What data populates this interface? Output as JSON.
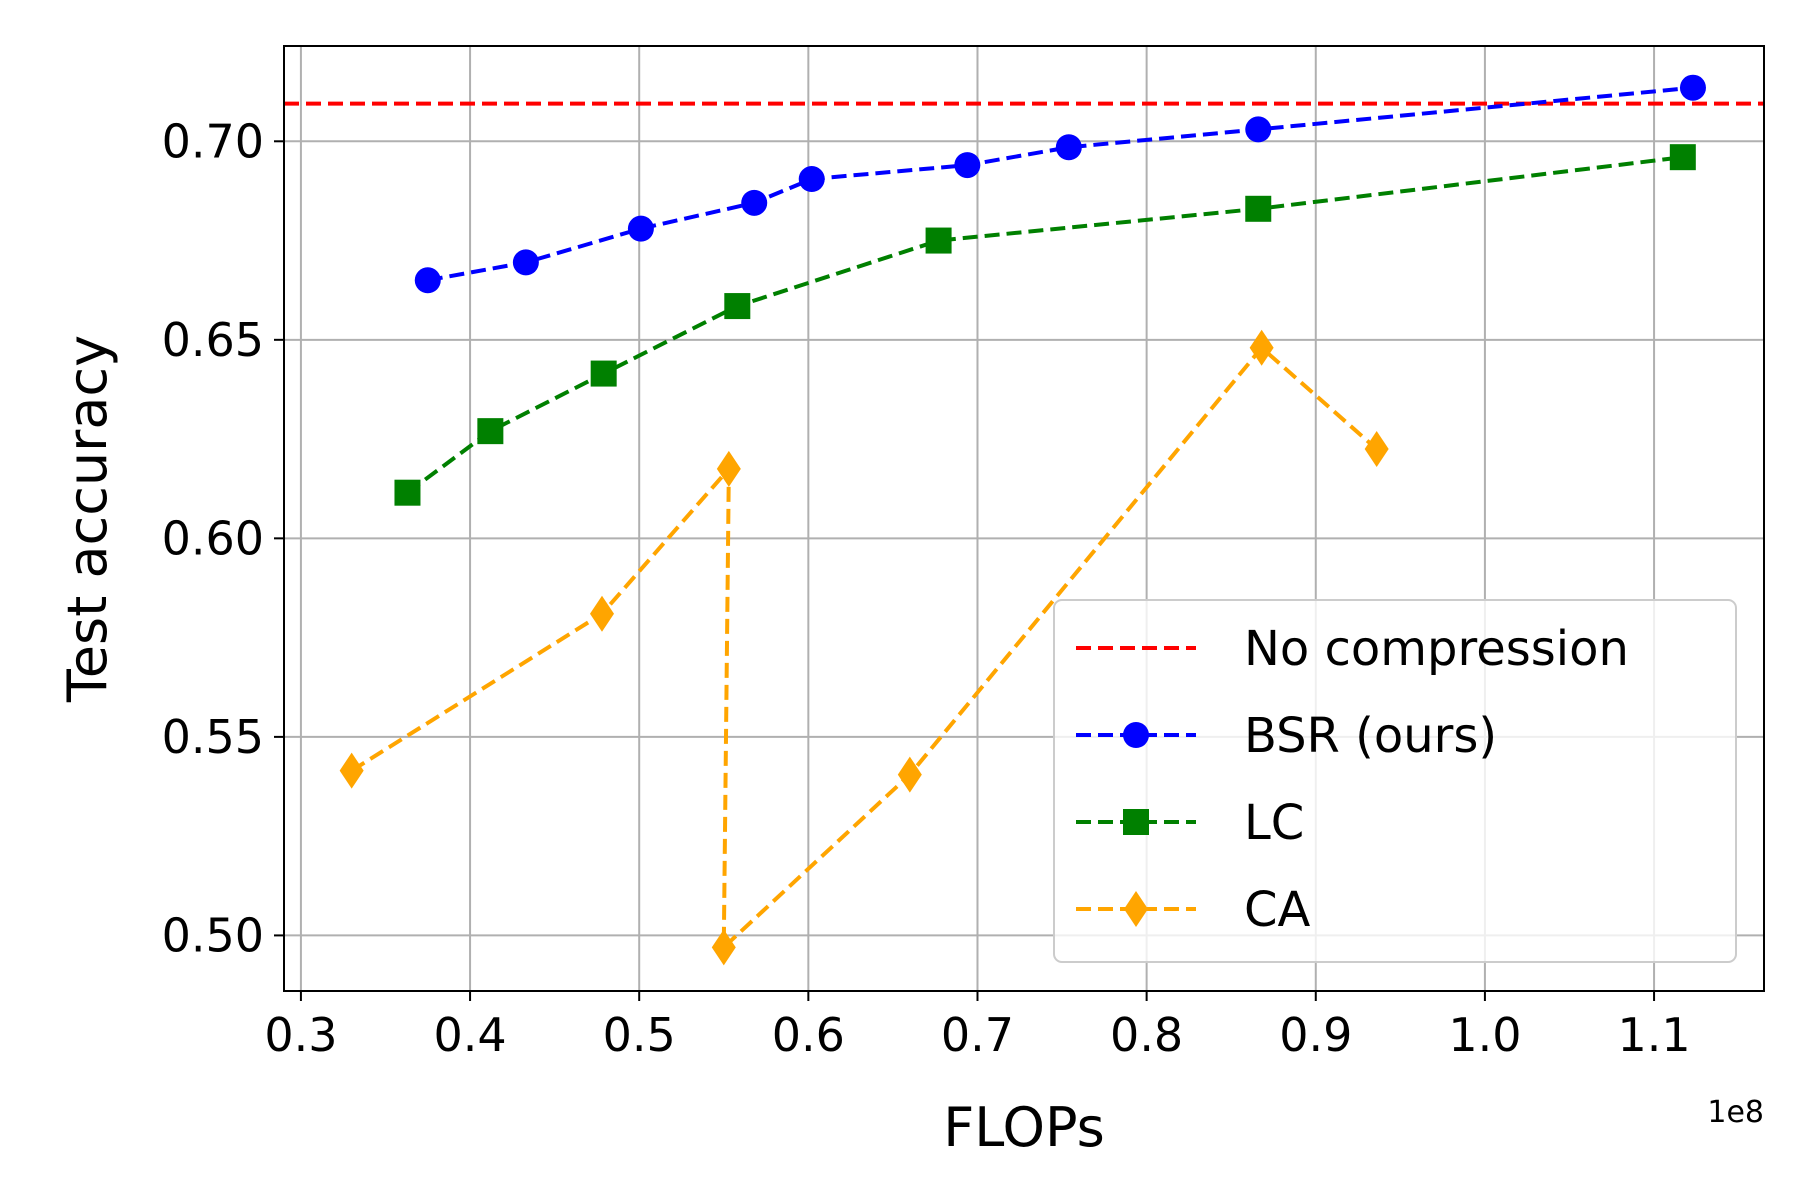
{
  "chart_data": {
    "type": "line",
    "title": "",
    "xlabel": "FLOPs",
    "ylabel": "Test accuracy",
    "x_offset_label": "1e8",
    "xlim": [
      0.29,
      1.165
    ],
    "ylim": [
      0.486,
      0.724
    ],
    "xticks": [
      0.3,
      0.4,
      0.5,
      0.6,
      0.7,
      0.8,
      0.9,
      1.0,
      1.1
    ],
    "xtick_labels": [
      "0.3",
      "0.4",
      "0.5",
      "0.6",
      "0.7",
      "0.8",
      "0.9",
      "1.0",
      "1.1"
    ],
    "yticks": [
      0.5,
      0.55,
      0.6,
      0.65,
      0.7
    ],
    "ytick_labels": [
      "0.50",
      "0.55",
      "0.60",
      "0.65",
      "0.70"
    ],
    "grid": true,
    "legend_position": "lower-right",
    "baseline": {
      "name": "No compression",
      "y": 0.7095,
      "color": "#ff0000"
    },
    "series": [
      {
        "name": "BSR (ours)",
        "color": "#0000ff",
        "marker": "circle",
        "x": [
          0.375,
          0.433,
          0.501,
          0.568,
          0.602,
          0.694,
          0.754,
          0.866,
          1.123
        ],
        "y": [
          0.665,
          0.6695,
          0.678,
          0.6845,
          0.6905,
          0.694,
          0.6985,
          0.703,
          0.7135
        ]
      },
      {
        "name": "LC",
        "color": "#008000",
        "marker": "square",
        "x": [
          0.363,
          0.412,
          0.479,
          0.558,
          0.677,
          0.866,
          1.117
        ],
        "y": [
          0.6115,
          0.627,
          0.6415,
          0.6585,
          0.675,
          0.683,
          0.696
        ]
      },
      {
        "name": "CA",
        "color": "#ffa500",
        "marker": "diamond",
        "x": [
          0.33,
          0.478,
          0.553,
          0.55,
          0.66,
          0.868,
          0.936
        ],
        "y": [
          0.5415,
          0.581,
          0.6175,
          0.497,
          0.5405,
          0.648,
          0.6225
        ]
      }
    ]
  }
}
